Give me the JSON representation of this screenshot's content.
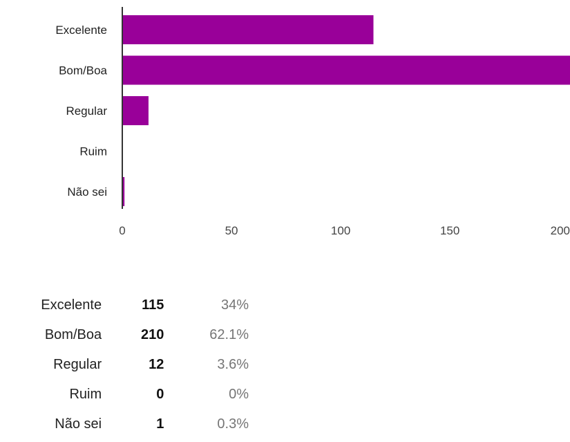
{
  "chart_data": {
    "type": "bar",
    "orientation": "horizontal",
    "categories": [
      "Excelente",
      "Bom/Boa",
      "Regular",
      "Ruim",
      "Não sei"
    ],
    "values": [
      115,
      210,
      12,
      0,
      1
    ],
    "xlim": [
      0,
      205
    ],
    "xticks": [
      0,
      50,
      100,
      150,
      200
    ],
    "bar_color": "#990099",
    "grid": false,
    "legend": "none"
  },
  "summary": {
    "rows": [
      {
        "label": "Excelente",
        "count": "115",
        "percent": "34%"
      },
      {
        "label": "Bom/Boa",
        "count": "210",
        "percent": "62.1%"
      },
      {
        "label": "Regular",
        "count": "12",
        "percent": "3.6%"
      },
      {
        "label": "Ruim",
        "count": "0",
        "percent": "0%"
      },
      {
        "label": "Não sei",
        "count": "1",
        "percent": "0.3%"
      }
    ]
  }
}
